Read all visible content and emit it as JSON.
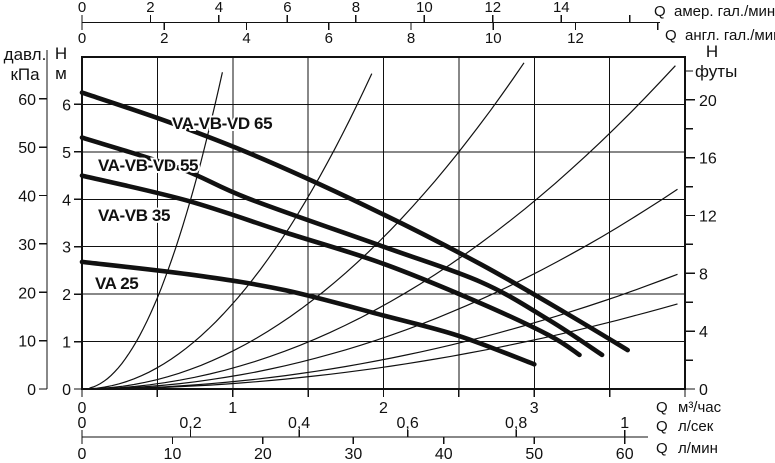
{
  "chart_data": {
    "type": "line",
    "x_primary_range_m3h": [
      0,
      4
    ],
    "y_primary_range_m": [
      0,
      7
    ],
    "grid": {
      "x_step_m3h": 0.5,
      "y_step_m": 1
    },
    "axes": {
      "y_head_m": {
        "header_lines": [
          "Н",
          "м"
        ],
        "ticks": [
          {
            "v": 0,
            "t": "0"
          },
          {
            "v": 1,
            "t": "1"
          },
          {
            "v": 2,
            "t": "2"
          },
          {
            "v": 3,
            "t": "3"
          },
          {
            "v": 4,
            "t": "4"
          },
          {
            "v": 5,
            "t": "5"
          },
          {
            "v": 6,
            "t": "6"
          }
        ]
      },
      "y_pressure_kpa": {
        "header_lines": [
          "давл.",
          "кПа"
        ],
        "m_per_unit": 0.10197,
        "ticks": [
          {
            "v": 0,
            "t": "0"
          },
          {
            "v": 10,
            "t": "10"
          },
          {
            "v": 20,
            "t": "20"
          },
          {
            "v": 30,
            "t": "30"
          },
          {
            "v": 40,
            "t": "40"
          },
          {
            "v": 50,
            "t": "50"
          },
          {
            "v": 60,
            "t": "60"
          }
        ]
      },
      "y_head_ft": {
        "header_lines": [
          "Н",
          "футы"
        ],
        "m_per_unit": 0.3048,
        "ticks": [
          {
            "v": 0,
            "t": "0"
          },
          {
            "v": 2,
            "t": ""
          },
          {
            "v": 4,
            "t": "4"
          },
          {
            "v": 6,
            "t": ""
          },
          {
            "v": 8,
            "t": "8"
          },
          {
            "v": 10,
            "t": ""
          },
          {
            "v": 12,
            "t": "12"
          },
          {
            "v": 14,
            "t": ""
          },
          {
            "v": 16,
            "t": "16"
          },
          {
            "v": 18,
            "t": ""
          },
          {
            "v": 20,
            "t": "20"
          },
          {
            "v": 22,
            "t": ""
          }
        ]
      },
      "x_m3h": {
        "prefix": "Q",
        "unit": "м³/час",
        "ticks": [
          {
            "v": 0,
            "t": "0"
          },
          {
            "v": 0.5,
            "t": ""
          },
          {
            "v": 1,
            "t": "1"
          },
          {
            "v": 1.5,
            "t": ""
          },
          {
            "v": 2,
            "t": "2"
          },
          {
            "v": 2.5,
            "t": ""
          },
          {
            "v": 3,
            "t": "3"
          },
          {
            "v": 3.5,
            "t": ""
          },
          {
            "v": 4,
            "t": ""
          }
        ]
      },
      "x_ls": {
        "prefix": "Q",
        "unit": "л/сек",
        "m3h_per_unit": 3.6,
        "ticks": [
          {
            "v": 0,
            "t": "0"
          },
          {
            "v": 0.2,
            "t": "0,2"
          },
          {
            "v": 0.4,
            "t": "0,4"
          },
          {
            "v": 0.6,
            "t": "0,6"
          },
          {
            "v": 0.8,
            "t": "0,8"
          },
          {
            "v": 1,
            "t": "1"
          }
        ]
      },
      "x_lmin": {
        "prefix": "Q",
        "unit": "л/мин",
        "m3h_per_unit": 0.06,
        "ticks": [
          {
            "v": 0,
            "t": "0"
          },
          {
            "v": 10,
            "t": "10"
          },
          {
            "v": 20,
            "t": "20"
          },
          {
            "v": 30,
            "t": "30"
          },
          {
            "v": 40,
            "t": "40"
          },
          {
            "v": 50,
            "t": "50"
          },
          {
            "v": 60,
            "t": "60"
          }
        ]
      },
      "x_us_gpm": {
        "prefix": "Q",
        "unit": "амер. гал./мин",
        "m3h_per_unit": 0.2271,
        "ticks": [
          {
            "v": 0,
            "t": "0"
          },
          {
            "v": 2,
            "t": "2"
          },
          {
            "v": 4,
            "t": "4"
          },
          {
            "v": 6,
            "t": "6"
          },
          {
            "v": 8,
            "t": "8"
          },
          {
            "v": 10,
            "t": "10"
          },
          {
            "v": 12,
            "t": "12"
          },
          {
            "v": 14,
            "t": "14"
          },
          {
            "v": 16,
            "t": ""
          }
        ]
      },
      "x_imp_gpm": {
        "prefix": "Q",
        "unit": "англ. гал./мин",
        "m3h_per_unit": 0.2728,
        "ticks": [
          {
            "v": 0,
            "t": "0"
          },
          {
            "v": 2,
            "t": "2"
          },
          {
            "v": 4,
            "t": "4"
          },
          {
            "v": 6,
            "t": "6"
          },
          {
            "v": 8,
            "t": "8"
          },
          {
            "v": 10,
            "t": "10"
          },
          {
            "v": 12,
            "t": "12"
          },
          {
            "v": 14,
            "t": ""
          }
        ]
      }
    },
    "pump_curves": [
      {
        "name": "VA 25",
        "points_q_h": [
          [
            0,
            2.68
          ],
          [
            0.75,
            2.4
          ],
          [
            1.35,
            2.08
          ],
          [
            2.0,
            1.55
          ],
          [
            2.5,
            1.12
          ],
          [
            3.0,
            0.52
          ]
        ],
        "label_pos_q_h": [
          0.086,
          2.11
        ]
      },
      {
        "name": "VA-VB 35",
        "points_q_h": [
          [
            0,
            4.5
          ],
          [
            0.7,
            3.97
          ],
          [
            1.35,
            3.3
          ],
          [
            2.0,
            2.64
          ],
          [
            2.65,
            1.8
          ],
          [
            3.1,
            1.13
          ],
          [
            3.3,
            0.72
          ]
        ],
        "label_pos_q_h": [
          0.106,
          3.54
        ]
      },
      {
        "name": "VA-VB-VD 55",
        "points_q_h": [
          [
            0,
            5.3
          ],
          [
            0.65,
            4.65
          ],
          [
            1.1,
            4.02
          ],
          [
            2.0,
            3.0
          ],
          [
            2.65,
            2.25
          ],
          [
            3.1,
            1.45
          ],
          [
            3.45,
            0.72
          ]
        ],
        "label_pos_q_h": [
          0.106,
          4.6
        ]
      },
      {
        "name": "VA-VB-VD 65",
        "points_q_h": [
          [
            0,
            6.25
          ],
          [
            0.6,
            5.6
          ],
          [
            1.2,
            4.85
          ],
          [
            2.0,
            3.68
          ],
          [
            2.65,
            2.62
          ],
          [
            3.2,
            1.62
          ],
          [
            3.62,
            0.82
          ]
        ],
        "label_pos_q_h": [
          0.597,
          5.48
        ]
      }
    ],
    "system_curves": {
      "k_values_m_per_m3h2": [
        7.7,
        1.8,
        0.8,
        0.44,
        0.27,
        0.155,
        0.115
      ]
    },
    "colors": {
      "ink": "#111111",
      "grid": "#1a1a1a",
      "background": "#ffffff"
    }
  }
}
